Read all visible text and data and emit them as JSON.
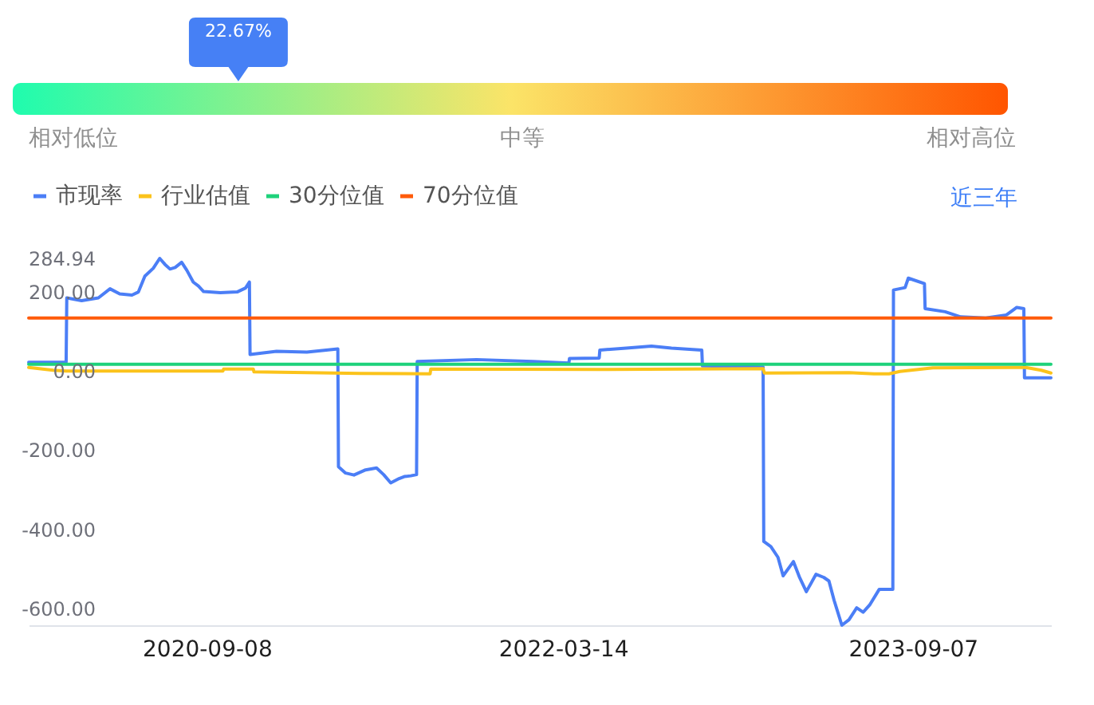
{
  "chart_data": [
    {
      "type": "other",
      "values": [
        22.67
      ],
      "value_labels": [
        "22.67%"
      ],
      "color": "#4680f5",
      "annotations": [
        "相对低位",
        "中等",
        "相对高位"
      ]
    },
    {
      "type": "line",
      "xlim": [
        "2019-12-07",
        "2024-04-08"
      ],
      "xticks": [
        "2020-09-08",
        "2022-03-14",
        "2023-09-07"
      ],
      "ylim": [
        -643,
        284.94
      ],
      "yticks": [
        {
          "value": 284.94,
          "label": "284.94"
        },
        {
          "value": 200,
          "label": "200.00"
        },
        {
          "value": 0,
          "label": "0.00"
        },
        {
          "value": -200,
          "label": "-200.00"
        },
        {
          "value": -400,
          "label": "-400.00"
        },
        {
          "value": -600,
          "label": "-600.00"
        }
      ],
      "legend": "top left",
      "annotations": [
        "近三年"
      ],
      "series": [
        {
          "name": "市现率",
          "color": "#4b7ef6",
          "x": [
            "2019-12-07",
            "2020-02-03",
            "2020-02-04",
            "2020-02-27",
            "2020-03-24",
            "2020-04-11",
            "2020-04-26",
            "2020-05-15",
            "2020-05-25",
            "2020-06-04",
            "2020-06-17",
            "2020-06-27",
            "2020-07-05",
            "2020-07-13",
            "2020-07-21",
            "2020-07-31",
            "2020-08-08",
            "2020-08-18",
            "2020-08-26",
            "2020-09-03",
            "2020-09-29",
            "2020-10-25",
            "2020-11-07",
            "2020-11-13",
            "2020-11-14",
            "2020-12-25",
            "2021-02-10",
            "2021-03-30",
            "2021-03-31",
            "2021-04-11",
            "2021-04-24",
            "2021-05-12",
            "2021-05-29",
            "2021-06-09",
            "2021-06-20",
            "2021-07-03",
            "2021-07-11",
            "2021-07-21",
            "2021-07-30",
            "2021-07-31",
            "2021-10-31",
            "2022-01-26",
            "2022-03-23",
            "2022-03-24",
            "2022-05-09",
            "2022-05-10",
            "2022-06-20",
            "2022-07-29",
            "2022-08-29",
            "2022-10-15",
            "2022-10-16",
            "2023-01-18",
            "2023-01-19",
            "2023-01-30",
            "2023-02-10",
            "2023-02-18",
            "2023-03-06",
            "2023-03-15",
            "2023-03-26",
            "2023-04-10",
            "2023-04-22",
            "2023-04-30",
            "2023-05-08",
            "2023-05-20",
            "2023-05-31",
            "2023-06-12",
            "2023-06-22",
            "2023-07-02",
            "2023-07-17",
            "2023-08-07",
            "2023-08-08",
            "2023-08-26",
            "2023-08-31",
            "2023-09-25",
            "2023-09-26",
            "2023-10-27",
            "2023-11-20",
            "2023-12-29",
            "2024-01-30",
            "2024-02-15",
            "2024-02-26",
            "2024-02-27",
            "2024-04-08"
          ],
          "values": [
            22,
            22,
            185,
            178,
            185,
            208,
            195,
            192,
            200,
            240,
            260,
            284.94,
            270,
            258,
            262,
            275,
            255,
            225,
            215,
            201,
            198,
            200,
            210,
            225,
            42,
            50,
            48,
            56,
            -242,
            -258,
            -263,
            -250,
            -245,
            -262,
            -283,
            -272,
            -267,
            -265,
            -262,
            24,
            29,
            24,
            20,
            32,
            33,
            53,
            58,
            63,
            58,
            53,
            13,
            10,
            -431,
            -444,
            -471,
            -518,
            -482,
            -520,
            -558,
            -514,
            -522,
            -531,
            -580,
            -643,
            -629,
            -599,
            -610,
            -592,
            -552,
            -552,
            205,
            211,
            235,
            221,
            158,
            150,
            137,
            134,
            142,
            161,
            158,
            -17,
            -17
          ]
        },
        {
          "name": "行业估值",
          "color": "#fbc31b",
          "x": [
            "2019-12-07",
            "2020-01-14",
            "2020-02-03",
            "2020-10-03",
            "2020-10-04",
            "2020-11-19",
            "2020-11-20",
            "2021-05-04",
            "2021-08-20",
            "2021-08-21",
            "2022-05-10",
            "2023-01-18",
            "2023-01-20",
            "2023-05-31",
            "2023-07-09",
            "2023-08-01",
            "2023-08-18",
            "2023-10-08",
            "2024-02-29",
            "2024-03-24",
            "2024-04-08"
          ],
          "values": [
            9,
            2,
            0,
            0,
            5,
            5,
            -2,
            -6,
            -7,
            5,
            4,
            6,
            -5,
            -4,
            -7,
            -7,
            -1,
            8,
            9,
            2,
            -5
          ]
        },
        {
          "name": "30分位值",
          "color": "#1ed27b",
          "x": [
            "2019-12-07",
            "2024-04-08"
          ],
          "values": [
            17,
            17
          ]
        },
        {
          "name": "70分位值",
          "color": "#ff5b0a",
          "x": [
            "2019-12-07",
            "2024-04-08"
          ],
          "values": [
            134,
            134
          ]
        }
      ]
    }
  ]
}
